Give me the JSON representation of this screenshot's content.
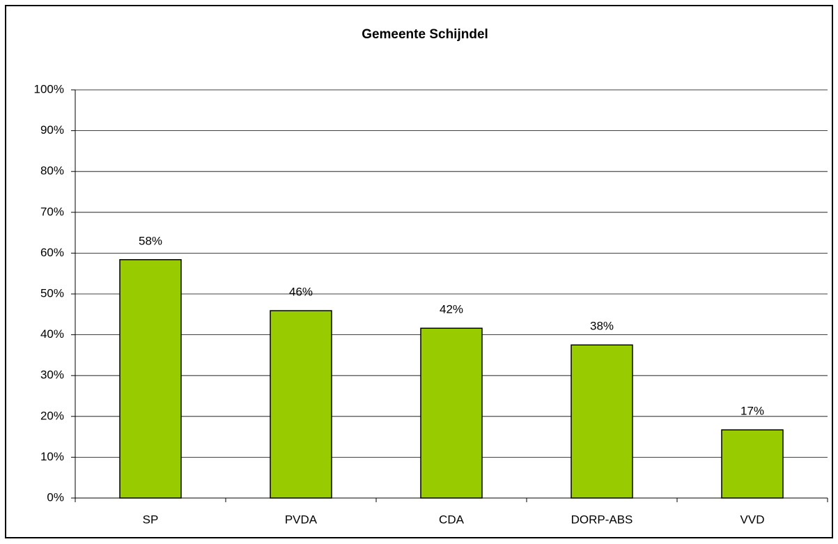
{
  "chart_data": {
    "type": "bar",
    "title": "Gemeente Schijndel",
    "categories": [
      "SP",
      "PVDA",
      "CDA",
      "DORP-ABS",
      "VVD"
    ],
    "values": [
      58.4,
      45.9,
      41.6,
      37.5,
      16.7
    ],
    "value_labels": [
      "58%",
      "46%",
      "42%",
      "38%",
      "17%"
    ],
    "color": "#99cc00",
    "ylim": [
      0,
      100
    ],
    "yticks": [
      {
        "value": 0,
        "label": "0%"
      },
      {
        "value": 10,
        "label": "10%"
      },
      {
        "value": 20,
        "label": "20%"
      },
      {
        "value": 30,
        "label": "30%"
      },
      {
        "value": 40,
        "label": "40%"
      },
      {
        "value": 50,
        "label": "50%"
      },
      {
        "value": 60,
        "label": "60%"
      },
      {
        "value": 70,
        "label": "70%"
      },
      {
        "value": 80,
        "label": "80%"
      },
      {
        "value": 90,
        "label": "90%"
      },
      {
        "value": 100,
        "label": "100%"
      }
    ],
    "grid": true
  }
}
